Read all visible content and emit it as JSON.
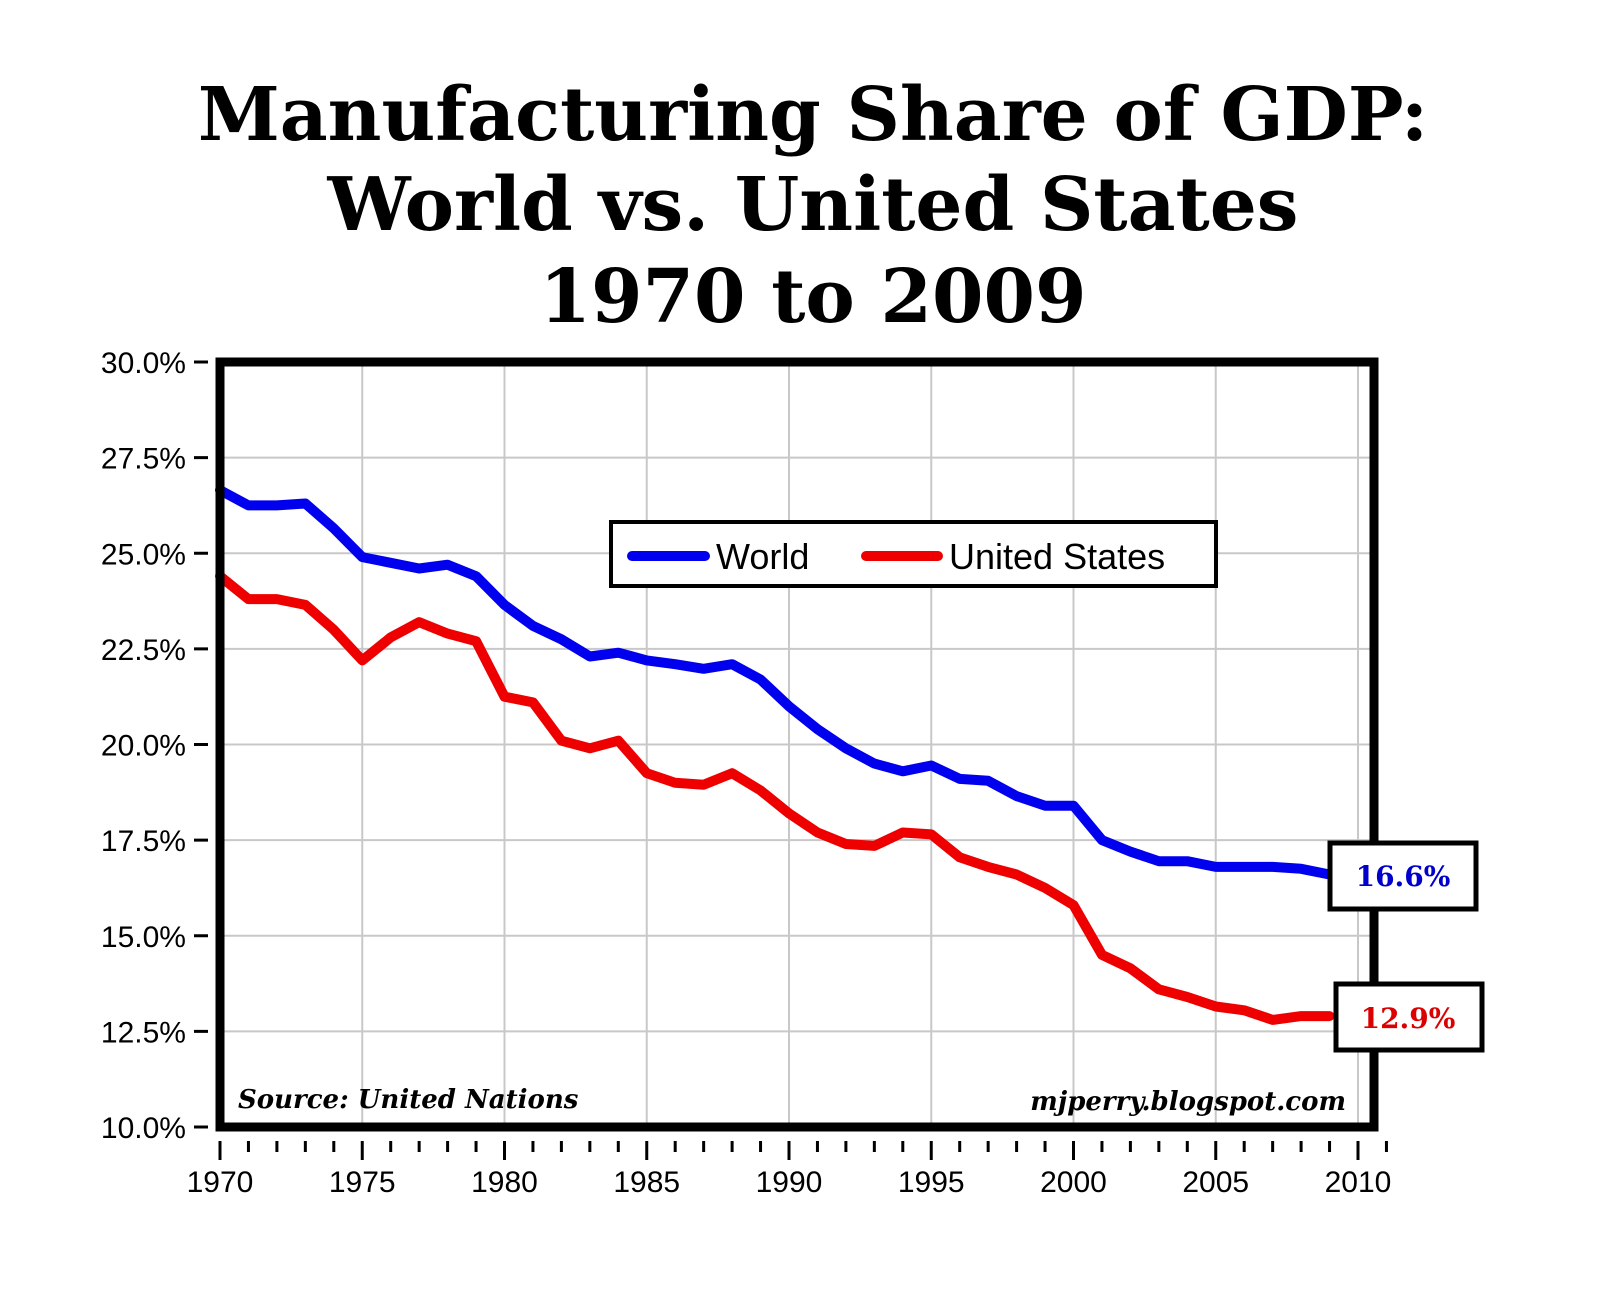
{
  "chart_data": {
    "type": "line",
    "title": [
      "Manufacturing Share of GDP:",
      "World vs. United States",
      "1970 to 2009"
    ],
    "xlabel": "",
    "ylabel": "",
    "xlim": [
      1970,
      2011
    ],
    "ylim": [
      10.0,
      30.0
    ],
    "x_ticks": [
      1970,
      1975,
      1980,
      1985,
      1990,
      1995,
      2000,
      2005,
      2010
    ],
    "x_tick_labels": [
      "1970",
      "1975",
      "1980",
      "1985",
      "1990",
      "1995",
      "2000",
      "2005",
      "2010"
    ],
    "y_ticks": [
      10.0,
      12.5,
      15.0,
      17.5,
      20.0,
      22.5,
      25.0,
      27.5,
      30.0
    ],
    "y_tick_labels": [
      "10.0%",
      "12.5%",
      "15.0%",
      "17.5%",
      "20.0%",
      "22.5%",
      "25.0%",
      "27.5%",
      "30.0%"
    ],
    "grid": true,
    "legend_position": "top-center",
    "x": [
      1970,
      1971,
      1972,
      1973,
      1974,
      1975,
      1976,
      1977,
      1978,
      1979,
      1980,
      1981,
      1982,
      1983,
      1984,
      1985,
      1986,
      1987,
      1988,
      1989,
      1990,
      1991,
      1992,
      1993,
      1994,
      1995,
      1996,
      1997,
      1998,
      1999,
      2000,
      2001,
      2002,
      2003,
      2004,
      2005,
      2006,
      2007,
      2008,
      2009
    ],
    "series": [
      {
        "name": "World",
        "color": "#0000ee",
        "values": [
          26.65,
          26.25,
          26.25,
          26.3,
          25.65,
          24.9,
          24.75,
          24.6,
          24.7,
          24.4,
          23.65,
          23.1,
          22.75,
          22.3,
          22.4,
          22.2,
          22.1,
          21.98,
          22.1,
          21.7,
          21.0,
          20.4,
          19.9,
          19.5,
          19.3,
          19.45,
          19.1,
          19.05,
          18.65,
          18.4,
          18.4,
          17.5,
          17.2,
          16.95,
          16.95,
          16.8,
          16.8,
          16.8,
          16.75,
          16.6
        ],
        "end_label": "16.6%"
      },
      {
        "name": "United States",
        "color": "#ee0000",
        "values": [
          24.4,
          23.8,
          23.8,
          23.65,
          23.0,
          22.2,
          22.8,
          23.2,
          22.9,
          22.7,
          21.25,
          21.1,
          20.1,
          19.9,
          20.1,
          19.25,
          19.0,
          18.95,
          19.25,
          18.8,
          18.2,
          17.7,
          17.4,
          17.35,
          17.7,
          17.65,
          17.05,
          16.8,
          16.6,
          16.25,
          15.8,
          14.5,
          14.15,
          13.6,
          13.4,
          13.15,
          13.05,
          12.8,
          12.9,
          12.9
        ],
        "end_label": "12.9%"
      }
    ],
    "annotations": {
      "source": "Source: United Nations",
      "credit": "mjperry.blogspot.com"
    }
  }
}
